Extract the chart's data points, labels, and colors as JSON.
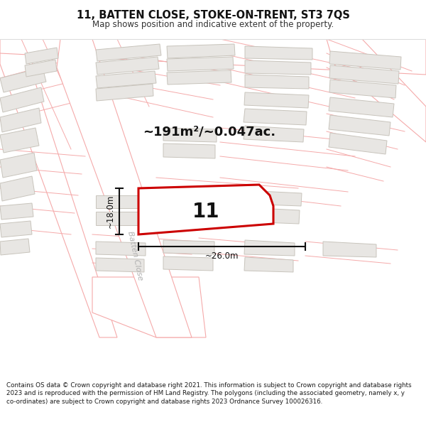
{
  "title_line1": "11, BATTEN CLOSE, STOKE-ON-TRENT, ST3 7QS",
  "title_line2": "Map shows position and indicative extent of the property.",
  "area_label": "~191m²/~0.047ac.",
  "house_number": "11",
  "dim_height": "~18.0m",
  "dim_width": "~26.0m",
  "street_label": "Batten Close",
  "footer_text": "Contains OS data © Crown copyright and database right 2021. This information is subject to Crown copyright and database rights 2023 and is reproduced with the permission of HM Land Registry. The polygons (including the associated geometry, namely x, y co-ordinates) are subject to Crown copyright and database rights 2023 Ordnance Survey 100026316.",
  "map_bg": "#f7f6f4",
  "building_fill": "#e8e6e3",
  "building_ec": "#c8c4bc",
  "road_fill": "#ffffff",
  "road_ec": "#f5aaaa",
  "plot_ec": "#cc0000",
  "plot_fill": "#ffffff",
  "title_bg": "#ffffff",
  "footer_bg": "#ffffff",
  "dim_color": "#111111",
  "street_color": "#b0b0b0",
  "text_color": "#111111"
}
